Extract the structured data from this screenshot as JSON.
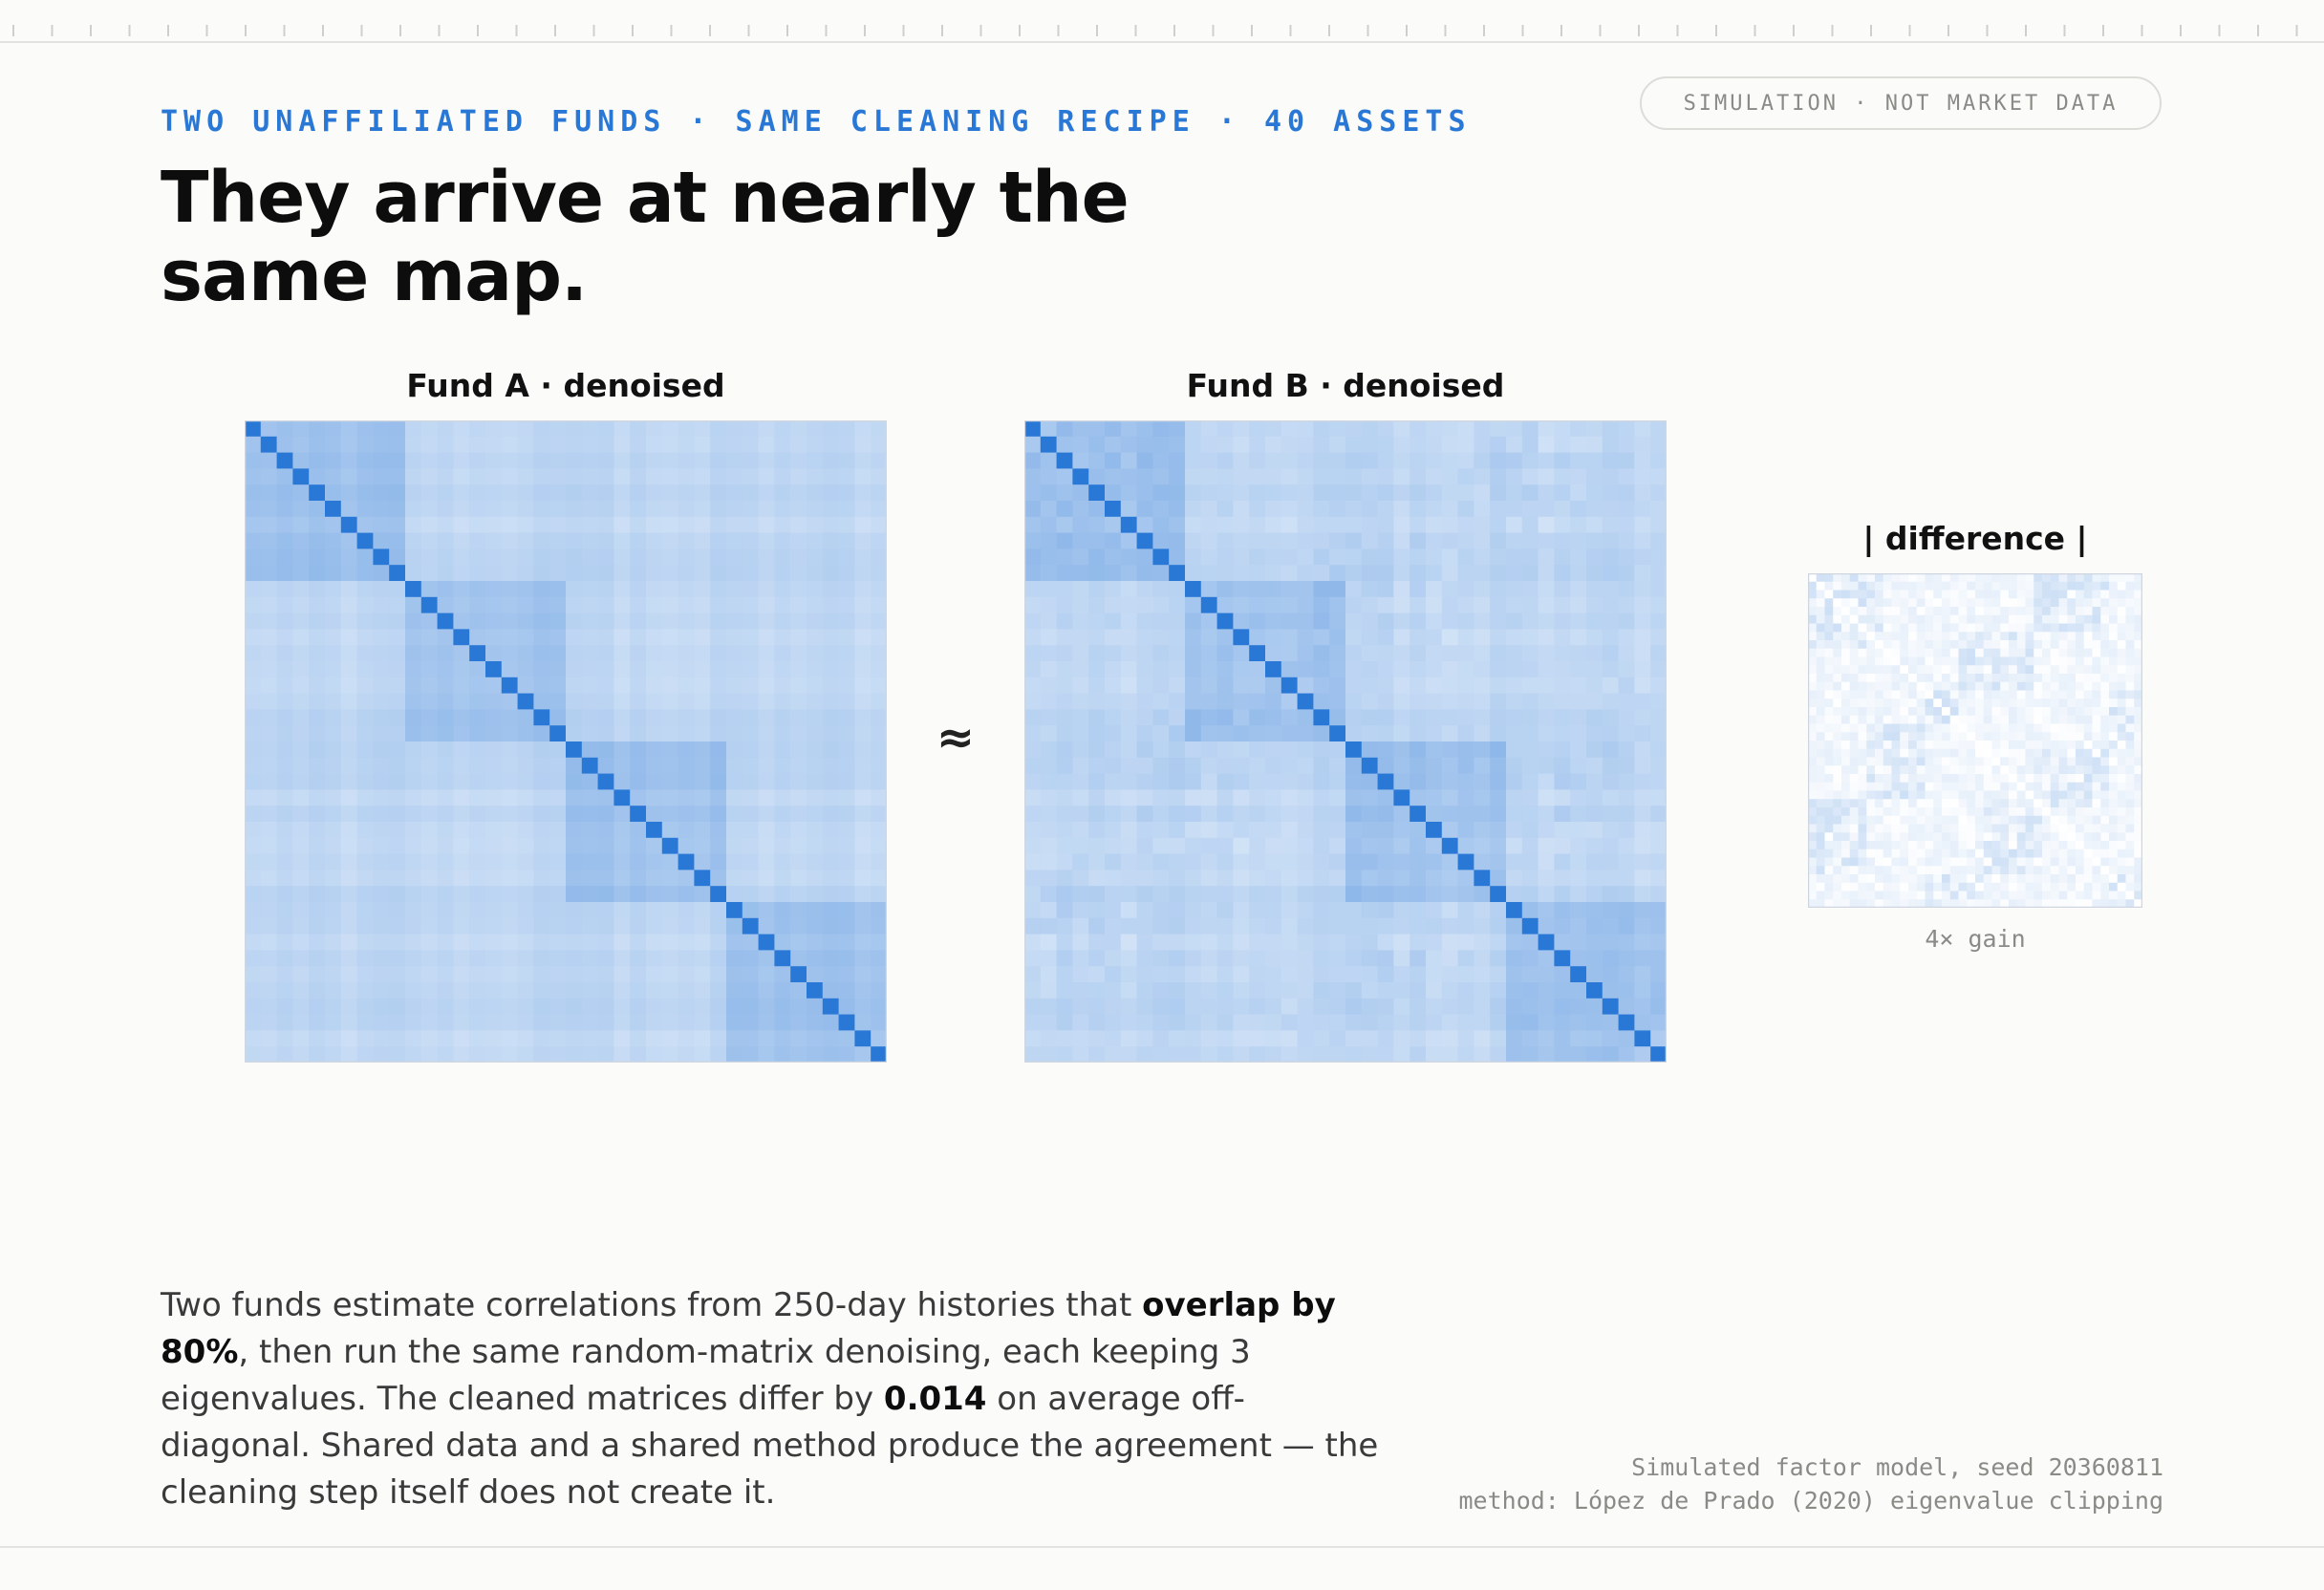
{
  "header": {
    "kicker": "TWO UNAFFILIATED FUNDS · SAME CLEANING RECIPE · 40 ASSETS",
    "badge": "SIMULATION · NOT MARKET DATA",
    "headline": "They arrive at nearly the same map."
  },
  "connector": "≈",
  "body": {
    "p1": "Two funds estimate correlations from 250-day histories that ",
    "b1": "overlap by 80%",
    "p2": ", then run the same random-matrix denoising, each keeping 3 eigenvalues. The cleaned matrices differ by ",
    "b2": "0.014",
    "p3": " on average off-diagonal. Shared data and a shared method produce the agreement — the cleaning step itself does not create it."
  },
  "source": {
    "line1": "Simulated factor model, seed 20360811",
    "line2": "method: López de Prado (2020) eigenvalue clipping"
  },
  "chart_data": [
    {
      "type": "heatmap",
      "title": "Fund A · denoised",
      "n_assets": 40,
      "blocks": [
        10,
        10,
        10,
        10
      ],
      "within_block_corr": 0.45,
      "between_block_corr": 0.3,
      "diagonal": 1.0,
      "color_high": "#2a78d6",
      "color_low": "#ffffff"
    },
    {
      "type": "heatmap",
      "title": "Fund B · denoised",
      "n_assets": 40,
      "blocks": [
        10,
        10,
        10,
        10
      ],
      "within_block_corr": 0.45,
      "between_block_corr": 0.3,
      "diagonal": 1.0,
      "color_high": "#2a78d6",
      "color_low": "#ffffff"
    },
    {
      "type": "heatmap",
      "title": "| difference |",
      "n_assets": 40,
      "mean_abs_offdiag_difference": 0.014,
      "gain_label": "4× gain",
      "color_high": "#2a78d6",
      "color_low": "#ffffff"
    }
  ]
}
